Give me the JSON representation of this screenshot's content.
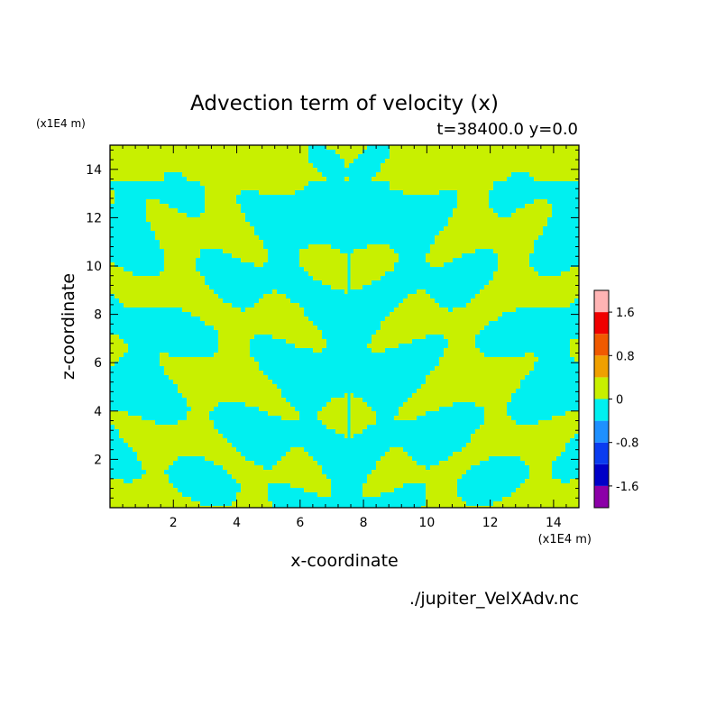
{
  "chart_data": {
    "type": "heatmap",
    "title": "Advection term of velocity (x)",
    "subtitle": "t=38400.0 y=0.0",
    "xlabel": "x-coordinate",
    "ylabel": "z-coordinate",
    "x_unit": "(x1E4 m)",
    "y_unit": "(x1E4 m)",
    "xlim": [
      0,
      14.8
    ],
    "ylim": [
      0,
      15
    ],
    "x_ticks": [
      "2",
      "4",
      "6",
      "8",
      "10",
      "12",
      "14"
    ],
    "y_ticks": [
      "2",
      "4",
      "6",
      "8",
      "10",
      "12",
      "14"
    ],
    "source_label": "./jupiter_VelXAdv.nc",
    "colorbar": {
      "levels": [
        -2.0,
        -1.6,
        -1.2,
        -0.8,
        -0.4,
        0.0,
        0.4,
        0.8,
        1.2,
        1.6,
        2.0
      ],
      "colors": [
        "#8c00a8",
        "#0000c8",
        "#0a3cf0",
        "#1e90ff",
        "#00f0f0",
        "#c8f000",
        "#f0a000",
        "#f05a00",
        "#f00000",
        "#ffb4b4"
      ],
      "tick_labels": [
        "1.6",
        "0.8",
        "0",
        "-0.8",
        "-1.6"
      ]
    },
    "field_summary": "Values mostly between -0.4 and 0.4 (cyan = -0.4..0, yellow-green = 0..0.4), mirror-symmetric about x=7.5",
    "field_classes": {
      "negative": "-0.4 to 0",
      "positive": "0 to 0.4"
    }
  }
}
